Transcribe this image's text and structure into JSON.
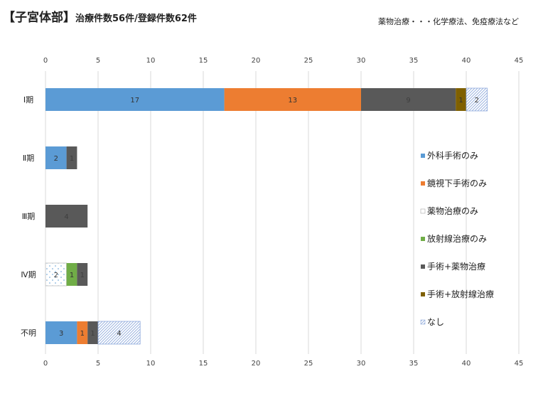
{
  "header": {
    "title": "【子宮体部】",
    "subtitle": "治療件数56件/登録件数62件"
  },
  "note": "薬物治療・・・化学療法、免疫療法など",
  "chart_data": {
    "type": "bar",
    "orientation": "horizontal",
    "stacked": true,
    "title": "【子宮体部】治療件数56件/登録件数62件",
    "xlim": [
      0,
      45
    ],
    "xticks": [
      0,
      5,
      10,
      15,
      20,
      25,
      30,
      35,
      40,
      45
    ],
    "grid": true,
    "legend_position": "right",
    "categories": [
      "Ⅰ期",
      "Ⅱ期",
      "Ⅲ期",
      "Ⅳ期",
      "不明"
    ],
    "series": [
      {
        "name": "外科手術のみ",
        "color": "#5b9bd5",
        "pattern": "solid",
        "values": [
          17,
          2,
          0,
          0,
          3
        ]
      },
      {
        "name": "鏡視下手術のみ",
        "color": "#ed7d31",
        "pattern": "solid",
        "values": [
          13,
          0,
          0,
          0,
          1
        ]
      },
      {
        "name": "薬物治療のみ",
        "color": "#5b9bd5",
        "pattern": "dots",
        "values": [
          0,
          0,
          0,
          2,
          0
        ]
      },
      {
        "name": "放射線治療のみ",
        "color": "#70ad47",
        "pattern": "solid",
        "values": [
          0,
          0,
          0,
          1,
          0
        ]
      },
      {
        "name": "手術+薬物治療",
        "color": "#595959",
        "pattern": "solid",
        "values": [
          9,
          1,
          4,
          1,
          1
        ]
      },
      {
        "name": "手術+放射線治療",
        "color": "#7f6000",
        "pattern": "solid",
        "values": [
          1,
          0,
          0,
          0,
          0
        ]
      },
      {
        "name": "なし",
        "color": "#8faadc",
        "pattern": "hatch",
        "values": [
          2,
          0,
          0,
          0,
          4
        ]
      }
    ]
  }
}
